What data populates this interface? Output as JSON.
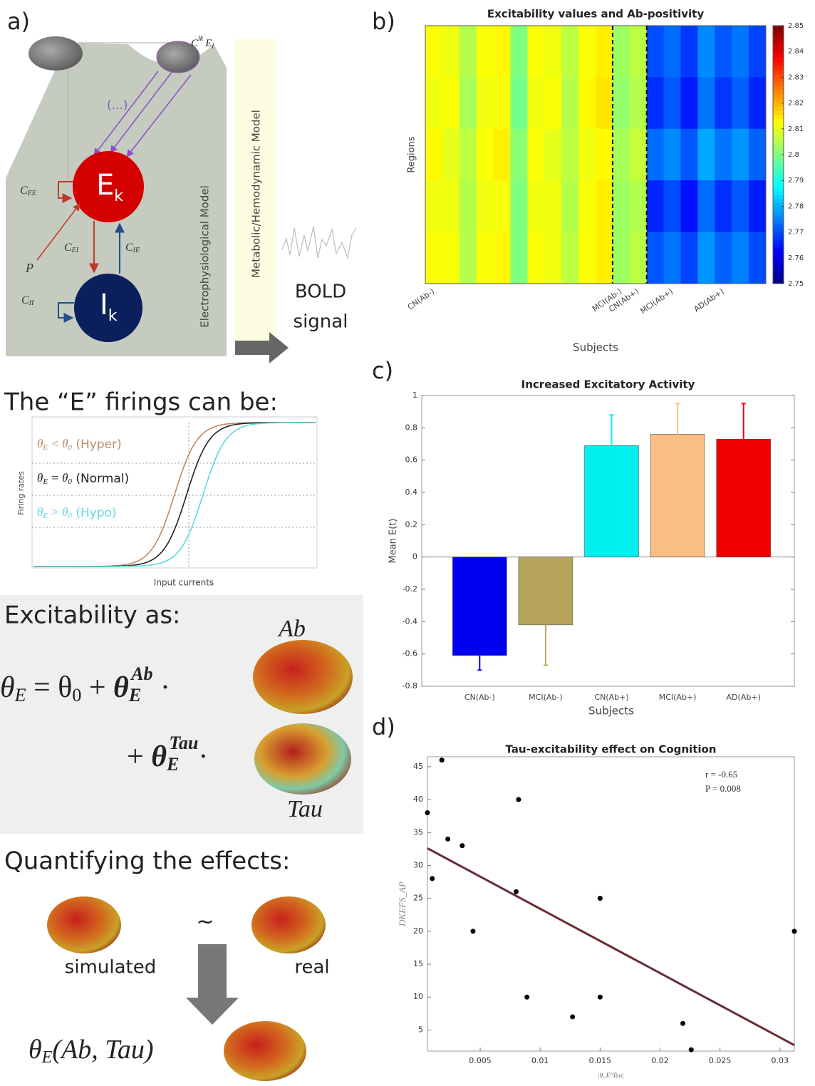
{
  "panel_a": {
    "label": "a)",
    "input_label": [
      "C",
      "lk",
      "E",
      "l"
    ],
    "ellipsis": "(...)",
    "excitatory": [
      "E",
      "k"
    ],
    "inhibitory": [
      "I",
      "k"
    ],
    "c_ee": [
      "C",
      "EE"
    ],
    "c_ei": [
      "C",
      "EI"
    ],
    "c_ie": [
      "C",
      "IE"
    ],
    "c_ii": [
      "C",
      "II"
    ],
    "p": "P",
    "electro_model": "Electrophysiological Model",
    "hemo_model": "Metabolic/Hemodynamic Model",
    "bold": [
      "BOLD",
      "signal"
    ]
  },
  "firings": {
    "heading": "The “E” firings can be:",
    "hyper": [
      "θ",
      "E",
      " < θ",
      "0",
      " (Hyper)"
    ],
    "normal": [
      "θ",
      "E",
      " = θ",
      "0",
      " (Normal)"
    ],
    "hypo": [
      "θ",
      "E",
      " > θ",
      "0",
      " (Hypo)"
    ],
    "y_label": "Firing rates",
    "x_label": "Input currents"
  },
  "excitability": {
    "heading": "Excitability as:",
    "ab": "Ab",
    "tau": "Tau",
    "line1": [
      "θ",
      "E",
      " = θ",
      "0",
      " + ",
      "θ",
      "E",
      "Ab",
      " ·"
    ],
    "line2": [
      "+ ",
      "θ",
      "E",
      "Tau",
      "·"
    ]
  },
  "quantifying": {
    "heading": "Quantifying the effects:",
    "simulated": "simulated",
    "tilde": "~",
    "real": "real",
    "result": [
      "θ",
      "E",
      "(Ab, Tau)"
    ]
  },
  "chart_data": [
    {
      "panel_label": "b)",
      "type": "heatmap",
      "title": "Excitability values and Ab-positivity",
      "x_label": "Subjects",
      "y_label": "Regions",
      "categories": [
        "CN(Ab-)",
        null,
        null,
        null,
        null,
        null,
        null,
        null,
        null,
        null,
        null,
        "MCI(Ab-)",
        "CN(Ab+)",
        null,
        "MCI(Ab+)",
        null,
        null,
        "AD(Ab+)",
        null,
        null
      ],
      "values": [
        [
          2.812,
          2.811,
          2.805,
          2.812,
          2.813,
          2.8,
          2.812,
          2.811,
          2.806,
          2.812,
          2.814,
          2.803,
          2.806,
          2.77,
          2.773,
          2.768,
          2.776,
          2.771,
          2.774,
          2.769
        ],
        [
          2.811,
          2.812,
          2.804,
          2.811,
          2.812,
          2.799,
          2.811,
          2.812,
          2.805,
          2.813,
          2.815,
          2.802,
          2.805,
          2.767,
          2.771,
          2.765,
          2.774,
          2.768,
          2.772,
          2.766
        ],
        [
          2.813,
          2.81,
          2.806,
          2.812,
          2.814,
          2.801,
          2.812,
          2.81,
          2.806,
          2.811,
          2.813,
          2.804,
          2.807,
          2.773,
          2.776,
          2.771,
          2.779,
          2.774,
          2.777,
          2.772
        ],
        [
          2.811,
          2.811,
          2.805,
          2.811,
          2.812,
          2.8,
          2.811,
          2.811,
          2.805,
          2.812,
          2.814,
          2.803,
          2.805,
          2.766,
          2.77,
          2.764,
          2.773,
          2.767,
          2.771,
          2.765
        ],
        [
          2.812,
          2.812,
          2.805,
          2.812,
          2.813,
          2.8,
          2.812,
          2.811,
          2.806,
          2.812,
          2.814,
          2.803,
          2.806,
          2.771,
          2.774,
          2.769,
          2.777,
          2.772,
          2.775,
          2.77
        ]
      ],
      "colormap": "jet",
      "clim": [
        2.75,
        2.85
      ],
      "colorbar_ticks": [
        2.75,
        2.76,
        2.77,
        2.78,
        2.79,
        2.8,
        2.81,
        2.82,
        2.83,
        2.84,
        2.85
      ]
    },
    {
      "panel_label": "c)",
      "type": "bar",
      "title": "Increased Excitatory Activity",
      "x_label": "Subjects",
      "y_label": "Mean E(t)",
      "categories": [
        "CN(Ab-)",
        "MCI(Ab-)",
        "CN(Ab+)",
        "MCI(Ab+)",
        "AD(Ab+)"
      ],
      "values": [
        -0.61,
        -0.42,
        0.69,
        0.76,
        0.73
      ],
      "errors": [
        0.09,
        0.25,
        0.19,
        0.19,
        0.22
      ],
      "colors": [
        "#0000f0",
        "#b8a55c",
        "#00f0f0",
        "#f8be84",
        "#f00000"
      ],
      "ylim": [
        -0.8,
        1
      ],
      "yticks": [
        -0.8,
        -0.6,
        -0.4,
        -0.2,
        0,
        0.2,
        0.4,
        0.6,
        0.8,
        1
      ]
    },
    {
      "panel_label": "d)",
      "type": "scatter",
      "title": "Tau-excitability effect on Cognition",
      "x_label": "|θ_E^Tau|",
      "y_label": "DKEFS_AP",
      "annotations": [
        "r = -0.65",
        "P = 0.008"
      ],
      "x": [
        0.0006,
        0.0018,
        0.001,
        0.0023,
        0.0035,
        0.0044,
        0.0082,
        0.008,
        0.0089,
        0.015,
        0.015,
        0.0127,
        0.0219,
        0.0226,
        0.0312
      ],
      "values": [
        38,
        46,
        28,
        34,
        33,
        20,
        40,
        26,
        10,
        25,
        10,
        7,
        6,
        2,
        20
      ],
      "color": "#000000",
      "fit": {
        "x": [
          0.0006,
          0.0312
        ],
        "y": [
          32.6,
          2.7
        ],
        "color": "#6b2b35"
      },
      "xlim": [
        0.0006,
        0.0312
      ],
      "ylim": [
        1.8,
        46.5
      ],
      "xticks": [
        0.005,
        0.01,
        0.015,
        0.02,
        0.025,
        0.03
      ],
      "yticks": [
        5,
        10,
        15,
        20,
        25,
        30,
        35,
        40,
        45
      ]
    }
  ]
}
